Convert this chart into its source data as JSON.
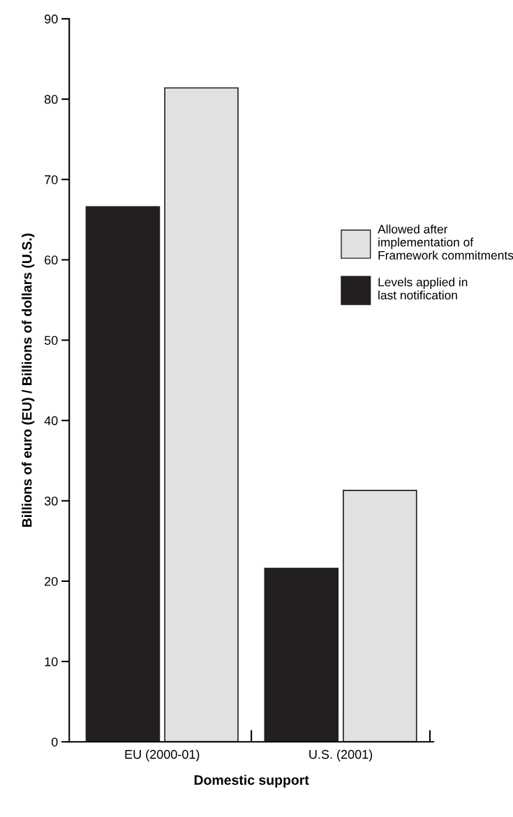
{
  "chart_data": {
    "type": "bar",
    "xlabel": "Domestic support",
    "ylabel": "Billions of euro (EU) / Billions of dollars (U.S.)",
    "categories": [
      "EU (2000-01)",
      "U.S. (2001)"
    ],
    "series": [
      {
        "name": "Levels applied in\nlast notification",
        "color": "#231f20",
        "values": [
          66.6,
          21.6
        ]
      },
      {
        "name": "Allowed after\nimplementation of\nFramework commitments",
        "color": "#e0e1e3",
        "values": [
          81.4,
          31.3
        ]
      }
    ],
    "ylim": [
      0,
      90
    ],
    "yticks": [
      0,
      10,
      20,
      30,
      40,
      50,
      60,
      70,
      80,
      90
    ],
    "grid": false,
    "legend": "right"
  }
}
